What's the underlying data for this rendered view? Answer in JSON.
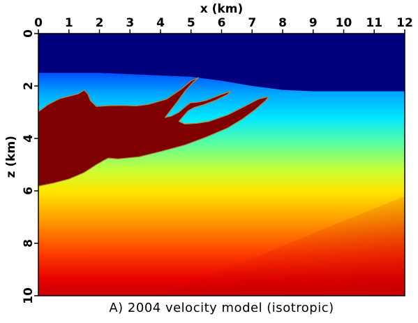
{
  "chart_data": {
    "type": "heatmap",
    "title": "",
    "caption": "A) 2004 velocity model (isotropic)",
    "xlabel": "x (km)",
    "ylabel": "z (km)",
    "xlim": [
      0,
      12
    ],
    "ylim": [
      0,
      10
    ],
    "x_axis_position": "top",
    "y_axis_inverted": true,
    "x_ticks": [
      "0",
      "1",
      "2",
      "3",
      "4",
      "5",
      "6",
      "7",
      "8",
      "9",
      "10",
      "11",
      "12"
    ],
    "y_ticks": [
      "0",
      "2",
      "4",
      "6",
      "8",
      "10"
    ],
    "x_tick_values": [
      0,
      1,
      2,
      3,
      4,
      5,
      6,
      7,
      8,
      9,
      10,
      11,
      12
    ],
    "y_tick_values": [
      0,
      2,
      4,
      6,
      8,
      10
    ],
    "grid": false,
    "legend": "none",
    "colormap": "jet",
    "colors": {
      "water": "#00007e",
      "salt": "#7f0000",
      "deep": "#d20000"
    },
    "water_bottom_depth": [
      {
        "x": 0,
        "z": 1.5
      },
      {
        "x": 1,
        "z": 1.5
      },
      {
        "x": 2,
        "z": 1.5
      },
      {
        "x": 3,
        "z": 1.55
      },
      {
        "x": 4,
        "z": 1.6
      },
      {
        "x": 5,
        "z": 1.65
      },
      {
        "x": 6,
        "z": 1.8
      },
      {
        "x": 7,
        "z": 2.0
      },
      {
        "x": 8,
        "z": 2.15
      },
      {
        "x": 9,
        "z": 2.2
      },
      {
        "x": 10,
        "z": 2.2
      },
      {
        "x": 11,
        "z": 2.2
      },
      {
        "x": 12,
        "z": 2.2
      }
    ],
    "salt_body_outline": [
      {
        "x": 0,
        "z": 2.98
      },
      {
        "x": 0.3,
        "z": 2.72
      },
      {
        "x": 0.7,
        "z": 2.48
      },
      {
        "x": 1.1,
        "z": 2.36
      },
      {
        "x": 1.3,
        "z": 2.3
      },
      {
        "x": 1.5,
        "z": 2.16
      },
      {
        "x": 1.62,
        "z": 2.3
      },
      {
        "x": 1.7,
        "z": 2.55
      },
      {
        "x": 1.9,
        "z": 2.78
      },
      {
        "x": 2.3,
        "z": 2.75
      },
      {
        "x": 2.8,
        "z": 2.74
      },
      {
        "x": 3.2,
        "z": 2.76
      },
      {
        "x": 3.6,
        "z": 2.7
      },
      {
        "x": 4.2,
        "z": 2.5
      },
      {
        "x": 4.7,
        "z": 2.1
      },
      {
        "x": 5.0,
        "z": 1.8
      },
      {
        "x": 5.25,
        "z": 1.68
      },
      {
        "x": 5.05,
        "z": 1.88
      },
      {
        "x": 4.8,
        "z": 2.2
      },
      {
        "x": 4.55,
        "z": 2.6
      },
      {
        "x": 4.35,
        "z": 2.9
      },
      {
        "x": 4.15,
        "z": 3.2
      },
      {
        "x": 4.35,
        "z": 3.15
      },
      {
        "x": 4.6,
        "z": 3.0
      },
      {
        "x": 4.8,
        "z": 2.8
      },
      {
        "x": 4.98,
        "z": 2.64
      },
      {
        "x": 5.2,
        "z": 2.62
      },
      {
        "x": 5.5,
        "z": 2.55
      },
      {
        "x": 6.0,
        "z": 2.32
      },
      {
        "x": 6.3,
        "z": 2.2
      },
      {
        "x": 6.2,
        "z": 2.32
      },
      {
        "x": 5.8,
        "z": 2.55
      },
      {
        "x": 5.4,
        "z": 2.72
      },
      {
        "x": 5.1,
        "z": 2.82
      },
      {
        "x": 4.9,
        "z": 2.95
      },
      {
        "x": 4.6,
        "z": 3.35
      },
      {
        "x": 4.8,
        "z": 3.45
      },
      {
        "x": 5.2,
        "z": 3.42
      },
      {
        "x": 5.6,
        "z": 3.35
      },
      {
        "x": 6.2,
        "z": 3.1
      },
      {
        "x": 6.8,
        "z": 2.75
      },
      {
        "x": 7.2,
        "z": 2.5
      },
      {
        "x": 7.55,
        "z": 2.4
      },
      {
        "x": 7.45,
        "z": 2.55
      },
      {
        "x": 7.1,
        "z": 2.9
      },
      {
        "x": 6.7,
        "z": 3.25
      },
      {
        "x": 6.2,
        "z": 3.6
      },
      {
        "x": 5.5,
        "z": 3.95
      },
      {
        "x": 4.8,
        "z": 4.25
      },
      {
        "x": 4.0,
        "z": 4.5
      },
      {
        "x": 3.3,
        "z": 4.7
      },
      {
        "x": 2.6,
        "z": 4.78
      },
      {
        "x": 2.3,
        "z": 4.75
      },
      {
        "x": 2.2,
        "z": 4.8
      },
      {
        "x": 1.9,
        "z": 5.0
      },
      {
        "x": 1.5,
        "z": 5.3
      },
      {
        "x": 1.0,
        "z": 5.55
      },
      {
        "x": 0.5,
        "z": 5.7
      },
      {
        "x": 0,
        "z": 5.82
      }
    ],
    "vertical_colormap_stops": [
      {
        "z": 1.5,
        "color": "#0050ff"
      },
      {
        "z": 2.3,
        "color": "#00a8ff"
      },
      {
        "z": 3.2,
        "color": "#00e6ff"
      },
      {
        "z": 4.2,
        "color": "#5affa0"
      },
      {
        "z": 5.2,
        "color": "#c8ff35"
      },
      {
        "z": 6.0,
        "color": "#ffe600"
      },
      {
        "z": 7.2,
        "color": "#ff9600"
      },
      {
        "z": 8.4,
        "color": "#ff3c00"
      },
      {
        "z": 9.4,
        "color": "#e60000"
      },
      {
        "z": 10.0,
        "color": "#c80000"
      }
    ]
  }
}
